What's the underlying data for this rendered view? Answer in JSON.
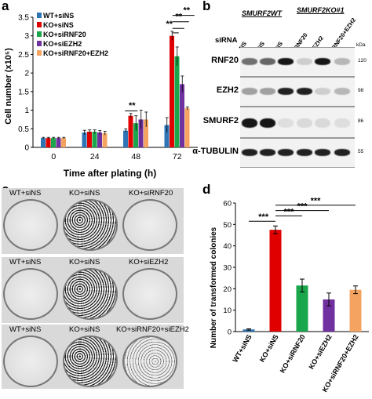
{
  "panels": {
    "a": "a",
    "b": "b",
    "c": "c",
    "d": "d"
  },
  "panel_a": {
    "ylabel": "Cell number (x10⁵)",
    "xlabel": "Time after plating (h)",
    "legend": [
      "WT+siNS",
      "KO+siNS",
      "KO+siRNF20",
      "KO+siEZH2",
      "KO+siRNF20+EZH2"
    ],
    "significance": [
      "**",
      "**",
      "**",
      "**",
      "**"
    ]
  },
  "panel_b": {
    "header_wt": "SMURF2WT",
    "header_ko": "SMURF2KO#1",
    "sirna_label": "siRNA",
    "lanes": [
      "NS",
      "NS",
      "NS",
      "RNF20",
      "EZH2",
      "RNF20+EZH2"
    ],
    "rows": [
      {
        "name": "RNF20",
        "mw": "120"
      },
      {
        "name": "EZH2",
        "mw": "98"
      },
      {
        "name": "SMURF2",
        "mw": "86"
      },
      {
        "name": "α-TUBULIN",
        "mw": "55"
      }
    ],
    "kda": "kDa"
  },
  "panel_c": {
    "rows": [
      [
        "WT+siNS",
        "KO+siNS",
        "KO+siRNF20"
      ],
      [
        "WT+siNS",
        "KO+siNS",
        "KO+siEZH2"
      ],
      [
        "WT+siNS",
        "KO+siNS",
        "KO+siRNF20+siEZH2"
      ]
    ]
  },
  "panel_d": {
    "significance": [
      "***",
      "***",
      "***",
      "***"
    ]
  },
  "colors": {
    "wt": "#2e75b6",
    "ko": "#e00000",
    "rnf20": "#1aa64b",
    "ezh2": "#7030a0",
    "both": "#f4a460"
  },
  "chart_data": [
    {
      "type": "bar",
      "title": "",
      "xlabel": "Time after plating (h)",
      "ylabel": "Cell number (x10⁵)",
      "ylim": [
        0,
        3.5
      ],
      "yticks": [
        0,
        0.5,
        1,
        1.5,
        2,
        2.5,
        3,
        3.5
      ],
      "categories": [
        "0",
        "24",
        "48",
        "72"
      ],
      "series": [
        {
          "name": "WT+siNS",
          "values": [
            0.25,
            0.4,
            0.45,
            0.6
          ],
          "errors": [
            0.02,
            0.06,
            0.05,
            0.2
          ]
        },
        {
          "name": "KO+siNS",
          "values": [
            0.25,
            0.42,
            0.85,
            3.0
          ],
          "errors": [
            0.02,
            0.05,
            0.06,
            0.12
          ]
        },
        {
          "name": "KO+siRNF20",
          "values": [
            0.25,
            0.42,
            0.65,
            2.45
          ],
          "errors": [
            0.02,
            0.05,
            0.2,
            0.25
          ]
        },
        {
          "name": "KO+siEZH2",
          "values": [
            0.25,
            0.4,
            0.75,
            1.7
          ],
          "errors": [
            0.02,
            0.05,
            0.25,
            0.22
          ]
        },
        {
          "name": "KO+siRNF20+EZH2",
          "values": [
            0.25,
            0.38,
            0.75,
            1.05
          ],
          "errors": [
            0.02,
            0.05,
            0.2,
            0.04
          ]
        }
      ],
      "grid": false,
      "legend_position": "top-left"
    },
    {
      "type": "bar",
      "title": "",
      "xlabel": "",
      "ylabel": "Number of transformed colonies",
      "ylim": [
        0,
        60
      ],
      "yticks": [
        0,
        10,
        20,
        30,
        40,
        50,
        60
      ],
      "categories": [
        "WT+siNS",
        "KO+siNS",
        "KO+siRNF20",
        "KO+siEZH2",
        "KO+siRNF20+EZH2"
      ],
      "values": [
        1,
        47.5,
        21.5,
        15,
        19.5
      ],
      "errors": [
        0.3,
        1.8,
        3,
        3,
        1.8
      ],
      "grid": false
    }
  ]
}
